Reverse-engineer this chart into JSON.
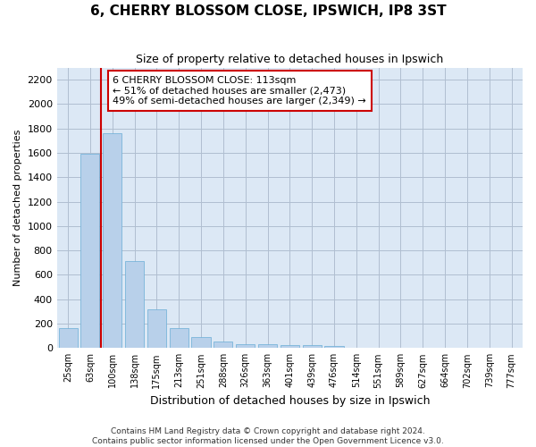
{
  "title": "6, CHERRY BLOSSOM CLOSE, IPSWICH, IP8 3ST",
  "subtitle": "Size of property relative to detached houses in Ipswich",
  "xlabel": "Distribution of detached houses by size in Ipswich",
  "ylabel": "Number of detached properties",
  "categories": [
    "25sqm",
    "63sqm",
    "100sqm",
    "138sqm",
    "175sqm",
    "213sqm",
    "251sqm",
    "288sqm",
    "326sqm",
    "363sqm",
    "401sqm",
    "439sqm",
    "476sqm",
    "514sqm",
    "551sqm",
    "589sqm",
    "627sqm",
    "664sqm",
    "702sqm",
    "739sqm",
    "777sqm"
  ],
  "values": [
    160,
    1590,
    1760,
    710,
    315,
    160,
    90,
    55,
    35,
    28,
    22,
    22,
    20,
    0,
    0,
    0,
    0,
    0,
    0,
    0,
    0
  ],
  "bar_color": "#b8d0ea",
  "bar_edge_color": "#6aaed6",
  "grid_color": "#b0bed0",
  "background_color": "#dce8f5",
  "annotation_text": "6 CHERRY BLOSSOM CLOSE: 113sqm\n← 51% of detached houses are smaller (2,473)\n49% of semi-detached houses are larger (2,349) →",
  "annotation_box_color": "#ffffff",
  "annotation_border_color": "#cc0000",
  "vline_color": "#cc0000",
  "vline_x": 1.5,
  "ylim": [
    0,
    2300
  ],
  "ytick_interval": 200,
  "title_fontsize": 11,
  "subtitle_fontsize": 9,
  "xlabel_fontsize": 9,
  "ylabel_fontsize": 8,
  "xtick_fontsize": 7,
  "ytick_fontsize": 8,
  "annotation_fontsize": 8,
  "footer_fontsize": 6.5,
  "footer_line1": "Contains HM Land Registry data © Crown copyright and database right 2024.",
  "footer_line2": "Contains public sector information licensed under the Open Government Licence v3.0."
}
